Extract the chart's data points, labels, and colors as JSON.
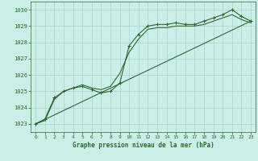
{
  "title": "Graphe pression niveau de la mer (hPa)",
  "background_color": "#cceee8",
  "grid_color": "#aad4ce",
  "line_color": "#2d6a2d",
  "xlim": [
    -0.5,
    23.5
  ],
  "ylim": [
    1022.5,
    1030.5
  ],
  "yticks": [
    1023,
    1024,
    1025,
    1026,
    1027,
    1028,
    1029,
    1030
  ],
  "xticks": [
    0,
    1,
    2,
    3,
    4,
    5,
    6,
    7,
    8,
    9,
    10,
    11,
    12,
    13,
    14,
    15,
    16,
    17,
    18,
    19,
    20,
    21,
    22,
    23
  ],
  "series_marked_x": [
    0,
    1,
    2,
    3,
    4,
    5,
    6,
    7,
    8,
    9,
    10,
    11,
    12,
    13,
    14,
    15,
    16,
    17,
    18,
    19,
    20,
    21,
    22,
    23
  ],
  "series_marked_y": [
    1023.0,
    1023.3,
    1024.6,
    1025.0,
    1025.2,
    1025.3,
    1025.1,
    1024.9,
    1025.0,
    1025.5,
    1027.8,
    1028.5,
    1029.0,
    1029.1,
    1029.1,
    1029.2,
    1029.1,
    1029.1,
    1029.3,
    1029.5,
    1029.7,
    1030.0,
    1029.6,
    1029.3
  ],
  "series_smooth_x": [
    0,
    1,
    2,
    3,
    4,
    5,
    6,
    7,
    8,
    9,
    10,
    11,
    12,
    13,
    14,
    15,
    16,
    17,
    18,
    19,
    20,
    21,
    22,
    23
  ],
  "series_smooth_y": [
    1023.0,
    1023.2,
    1024.5,
    1025.0,
    1025.2,
    1025.4,
    1025.2,
    1025.1,
    1025.3,
    1026.1,
    1027.4,
    1028.2,
    1028.8,
    1028.9,
    1028.9,
    1029.0,
    1029.0,
    1029.0,
    1029.1,
    1029.3,
    1029.5,
    1029.7,
    1029.4,
    1029.2
  ],
  "trend_x": [
    0,
    23
  ],
  "trend_y": [
    1023.0,
    1029.3
  ]
}
